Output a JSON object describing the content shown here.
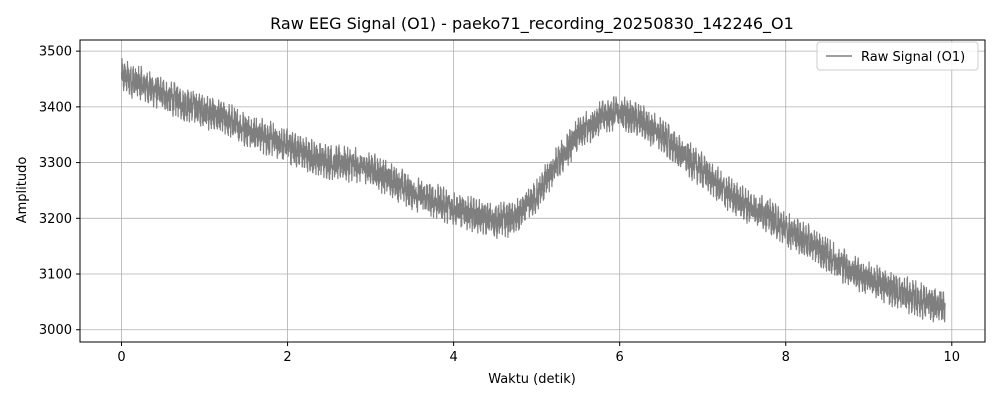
{
  "chart_data": {
    "type": "line",
    "title": "Raw EEG Signal (O1) - paeko71_recording_20250830_142246_O1",
    "xlabel": "Waktu (detik)",
    "ylabel": "Amplitudo",
    "xlim": [
      -0.5,
      10.4
    ],
    "ylim": [
      2978,
      3520
    ],
    "x_ticks": [
      0,
      2,
      4,
      6,
      8,
      10
    ],
    "y_ticks": [
      3000,
      3100,
      3200,
      3300,
      3400,
      3500
    ],
    "grid": true,
    "legend_position": "top-right",
    "series": [
      {
        "name": "Raw Signal (O1)",
        "color": "#7f7f7f",
        "x": [
          0.0,
          0.25,
          0.5,
          0.75,
          1.0,
          1.25,
          1.5,
          1.75,
          2.0,
          2.25,
          2.5,
          2.75,
          3.0,
          3.25,
          3.5,
          3.75,
          4.0,
          4.25,
          4.5,
          4.75,
          5.0,
          5.25,
          5.5,
          5.75,
          6.0,
          6.25,
          6.5,
          6.75,
          7.0,
          7.25,
          7.5,
          7.75,
          8.0,
          8.25,
          8.5,
          8.75,
          9.0,
          9.25,
          9.5,
          9.75,
          9.92
        ],
        "values": [
          3455,
          3440,
          3422,
          3405,
          3393,
          3378,
          3360,
          3345,
          3330,
          3312,
          3302,
          3297,
          3288,
          3268,
          3247,
          3232,
          3218,
          3205,
          3196,
          3200,
          3240,
          3300,
          3350,
          3380,
          3392,
          3375,
          3350,
          3315,
          3285,
          3250,
          3225,
          3210,
          3180,
          3160,
          3135,
          3110,
          3090,
          3075,
          3060,
          3045,
          3045
        ],
        "noise_amplitude": 30,
        "sample_rate_hz": 500
      }
    ]
  }
}
